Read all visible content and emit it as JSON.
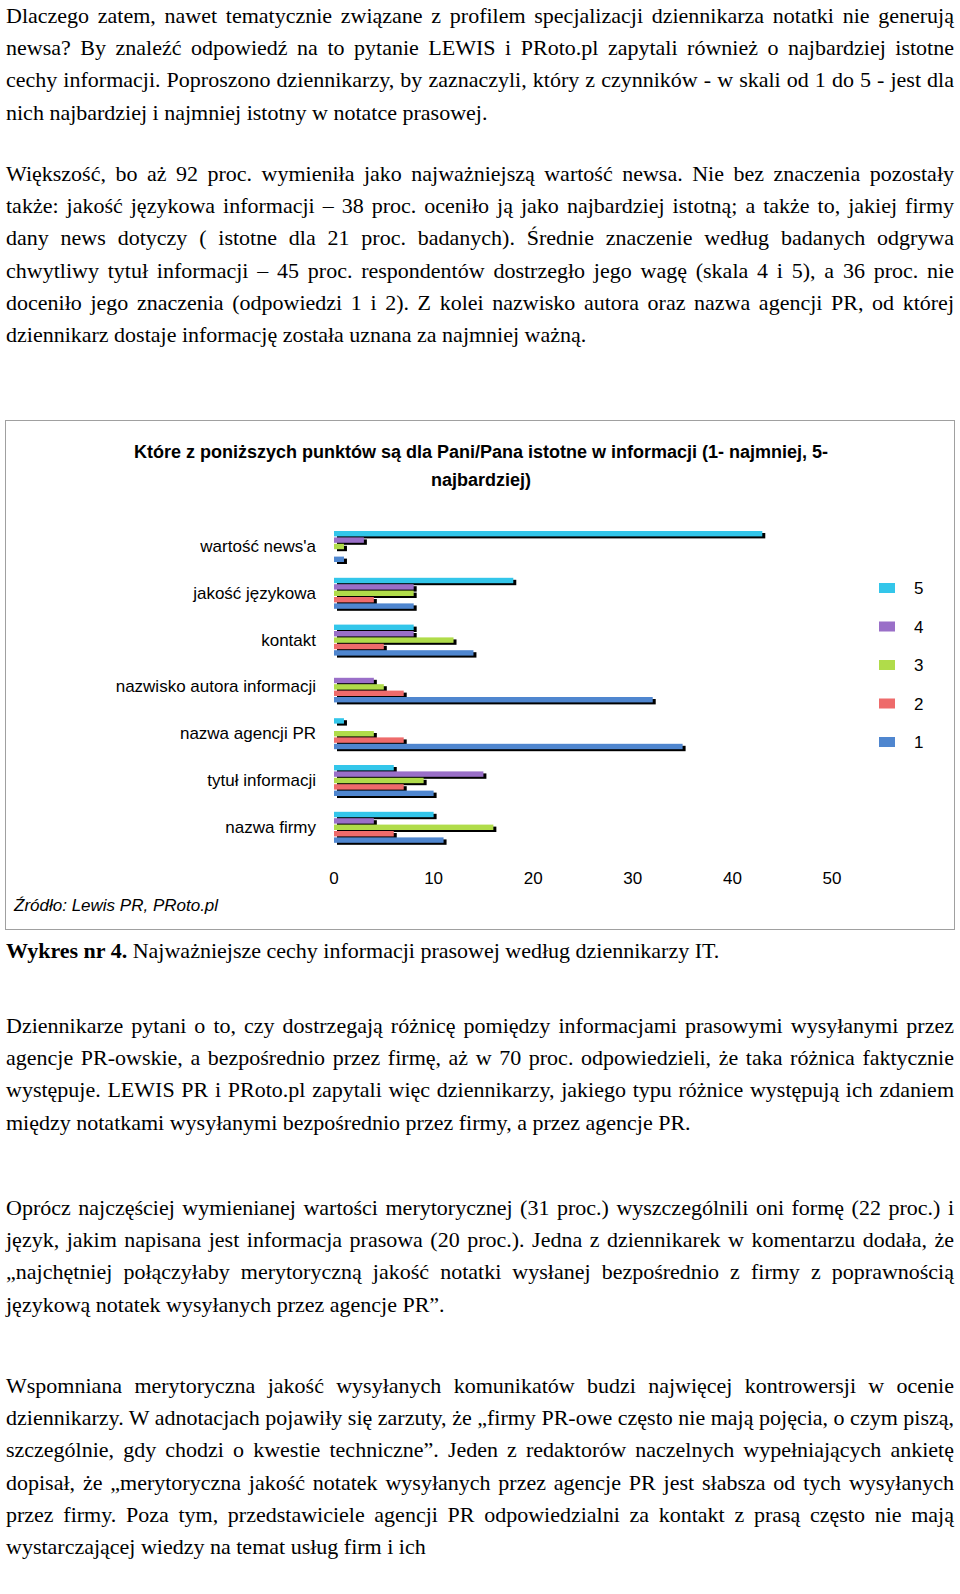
{
  "paragraphs_before": [
    "Dlaczego zatem, nawet tematycznie związane z profilem specjalizacji dziennikarza notatki nie generują newsa? By znaleźć odpowiedź na to pytanie LEWIS i PRoto.pl zapytali również o najbardziej istotne cechy informacji. Poproszono dziennikarzy, by zaznaczyli, który z czynników - w skali od 1 do 5 - jest dla nich najbardziej i najmniej istotny w notatce prasowej.",
    "Większość, bo aż 92 proc. wymieniła jako najważniejszą wartość newsa. Nie bez znaczenia pozostały także: jakość językowa informacji – 38 proc. oceniło ją jako najbardziej istotną; a także to, jakiej firmy dany news dotyczy ( istotne dla 21 proc. badanych). Średnie znaczenie według badanych odgrywa chwytliwy tytuł informacji – 45 proc. respondentów dostrzegło jego wagę (skala 4 i 5), a 36 proc. nie doceniło jego znaczenia (odpowiedzi 1 i 2). Z kolei nazwisko autora oraz nazwa agencji PR, od której dziennikarz dostaje informację została uznana za najmniej ważną."
  ],
  "chart_data": {
    "type": "bar",
    "orientation": "horizontal",
    "title": "Które z poniższych punktów są dla Pani/Pana istotne w informacji (1- najmniej, 5- najbardziej)",
    "source": "Źródło: Lewis PR, PRoto.pl",
    "categories": [
      "wartość news'a",
      "jakość językowa",
      "kontakt",
      "nazwisko autora informacji",
      "nazwa agencji PR",
      "tytuł informacji",
      "nazwa firmy"
    ],
    "series": [
      {
        "name": "5",
        "color": "#33c6ea",
        "values": [
          43,
          18,
          8,
          0,
          1,
          6,
          10
        ]
      },
      {
        "name": "4",
        "color": "#9a6fc8",
        "values": [
          3,
          8,
          8,
          4,
          0,
          15,
          4
        ]
      },
      {
        "name": "3",
        "color": "#b0dc4a",
        "values": [
          1,
          8,
          12,
          5,
          4,
          9,
          16
        ]
      },
      {
        "name": "2",
        "color": "#ee6b6b",
        "values": [
          0,
          4,
          5,
          7,
          7,
          7,
          6
        ]
      },
      {
        "name": "1",
        "color": "#4f86cf",
        "values": [
          1,
          8,
          14,
          32,
          35,
          10,
          11
        ]
      }
    ],
    "xlim": [
      0,
      50
    ],
    "xticks": [
      0,
      10,
      20,
      30,
      40,
      50
    ],
    "grid": false,
    "legend": "right"
  },
  "caption": {
    "label": "Wykres nr 4.",
    "text": " Najważniejsze cechy informacji prasowej według dziennikarzy IT."
  },
  "paragraphs_after": [
    "Dziennikarze pytani o to, czy dostrzegają różnicę pomiędzy informacjami prasowymi wysyłanymi przez agencje PR-owskie, a bezpośrednio przez firmę, aż w 70 proc. odpowiedzieli, że taka różnica faktycznie występuje. LEWIS PR i PRoto.pl zapytali więc dziennikarzy, jakiego typu różnice występują ich zdaniem między notatkami wysyłanymi bezpośrednio przez firmy, a przez agencje PR.",
    "Oprócz najczęściej wymienianej wartości merytorycznej (31 proc.) wyszczególnili oni formę (22 proc.) i język, jakim napisana jest informacja prasowa (20 proc.). Jedna z dziennikarek w komentarzu dodała, że „najchętniej połączyłaby merytoryczną jakość notatki wysłanej bezpośrednio z firmy z poprawnością językową notatek wysyłanych przez agencje PR”.",
    "Wspomniana merytoryczna jakość wysyłanych komunikatów budzi najwięcej kontrowersji w ocenie dziennikarzy. W adnotacjach pojawiły się zarzuty, że „firmy PR-owe często nie mają pojęcia, o czym piszą, szczególnie, gdy chodzi o kwestie techniczne”. Jeden z redaktorów naczelnych wypełniających ankietę dopisał, że „merytoryczna jakość notatek wysyłanych przez agencje PR jest słabsza od tych wysyłanych przez firmy. Poza tym, przedstawiciele agencji PR odpowiedzialni za kontakt z prasą często nie mają wystarczającej wiedzy na temat usług firm i ich"
  ]
}
